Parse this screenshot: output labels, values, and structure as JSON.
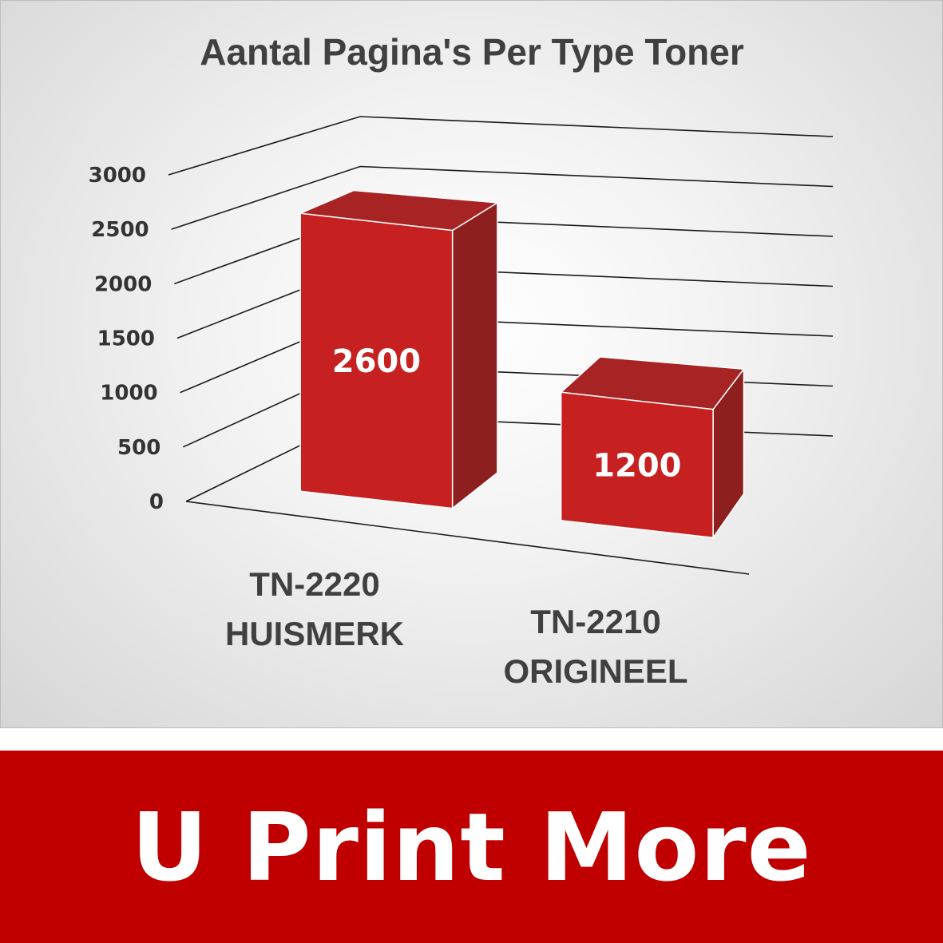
{
  "chart_data": {
    "type": "bar",
    "style": "3d-column",
    "title": "Aantal Pagina's Per Type Toner",
    "categories": [
      "TN-2220 HUISMERK",
      "TN-2210 ORIGINEEL"
    ],
    "category_lines": [
      [
        "TN-2220",
        "HUISMERK"
      ],
      [
        "TN-2210",
        "ORIGINEEL"
      ]
    ],
    "values": [
      2600,
      1200
    ],
    "data_labels": [
      "2600",
      "1200"
    ],
    "ylim": [
      0,
      3000
    ],
    "yticks": [
      "0",
      "500",
      "1000",
      "1500",
      "2000",
      "2500",
      "3000"
    ],
    "grid": true,
    "bar_color": "#c62020",
    "xlabel": "",
    "ylabel": ""
  },
  "banner": {
    "text": "U Print More",
    "color": "#c00000"
  }
}
